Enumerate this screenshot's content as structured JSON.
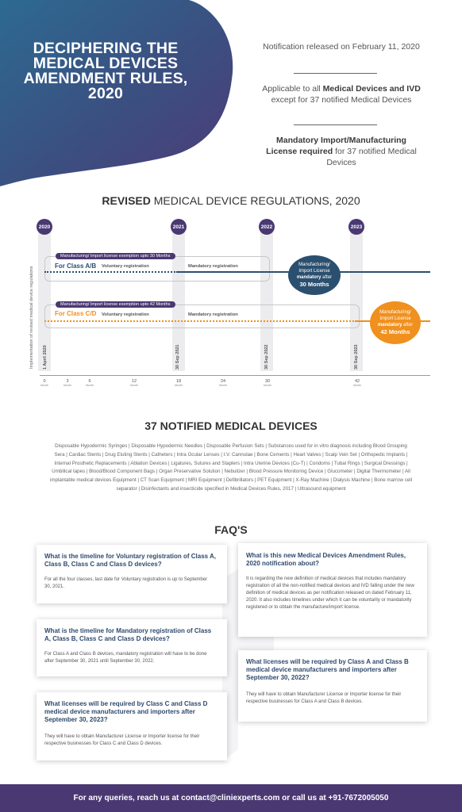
{
  "header": {
    "title": "DECIPHERING THE MEDICAL DEVICES AMENDMENT RULES, 2020",
    "info1": "Notification released on February 11, 2020",
    "info2_pre": "Applicable to all ",
    "info2_bold": "Medical Devices and IVD",
    "info2_post": " except for 37 notified Medical Devices",
    "info3_bold": "Mandatory Import/Manufacturing License required",
    "info3_post": " for 37 notified Medical Devices"
  },
  "regulations": {
    "title_bold": "REVISED",
    "title_rest": " MEDICAL DEVICE REGULATIONS, 2020",
    "years": [
      "2020",
      "2021",
      "2022",
      "2023"
    ],
    "y_axis_label": "Implementation of revised medical device regulations",
    "class_ab": {
      "pill": "Manufacturing/ Import license exemption upto 30 Months",
      "label": "For Class A/B",
      "voluntary": "Voluntary registration",
      "mandatory": "Mandatory registration",
      "circle_line1": "Manufacturing/",
      "circle_line2": "Import License",
      "circle_bold": "mandatory",
      "circle_after": " after",
      "circle_months": "30 Months",
      "color": "#2b4f6e"
    },
    "class_cd": {
      "pill": "Manufacturing/ Import license exemption upto 42 Months",
      "label": "For Class C/D",
      "voluntary": "Voluntary registration",
      "mandatory": "Mandatory registration",
      "circle_line1": "Manufacturing/",
      "circle_line2": "Import License",
      "circle_bold": "mandatory",
      "circle_after": " after",
      "circle_months": "42 Months",
      "color": "#f0901e"
    },
    "dates": [
      "1 April 2020",
      "30 Sep 2021",
      "30 Sep 2022",
      "30 Sep 2023"
    ],
    "ticks": [
      {
        "value": "0",
        "unit": "Month"
      },
      {
        "value": "3",
        "unit": "Month"
      },
      {
        "value": "6",
        "unit": "Month"
      },
      {
        "value": "12",
        "unit": "Month"
      },
      {
        "value": "18",
        "unit": "Month"
      },
      {
        "value": "24",
        "unit": "Month"
      },
      {
        "value": "30",
        "unit": "Month"
      },
      {
        "value": "42",
        "unit": "Month"
      }
    ]
  },
  "devices": {
    "title": "37 NOTIFIED MEDICAL DEVICES",
    "list": "Disposable Hypodermic Syringes  |  Disposable Hypodermic Needles  |  Disposable Perfusion Sets  |  Substances used for in vitro diagnosis including Blood Grouping Sera  |  Cardiac Stents  |  Drug Eluting Stents  |  Catheters  |  Intra Ocular Lenses  |  I.V. Cannulae  |  Bone Cements  |  Heart Valves  |  Scalp Vein Set  |  Orthopedic Implants  |  Internal Prosthetic Replacements  |  Ablation Devices  |  Ligatures, Sutures and Staplers  |  Intra Uterine Devices (Cu-T)  |  Condoms  |  Tubal Rings  |  Surgical Dressings  |  Umbilical tapes  |  Blood/Blood Component Bags  |  Organ Preservative Solution  |  Nebulizer  |  Blood Pressure Monitoring Device  |  Glucometer  |  Digital Thermometer  |  All implantable medical devices Equipment  |  CT Scan Equipment  |  MRI Equipment  |  Defibrillators  |  PET Equipment  |  X-Ray Machine  |  Dialysis Machine  |  Bone marrow cell separator  |  Disinfectants and insecticide specified in Medical Devices Rules, 2017  |  Ultrasound equipment"
  },
  "faq": {
    "title": "FAQ'S",
    "items": [
      {
        "q": "What is the timeline for Voluntary registration of Class A, Class B, Class C and Class D devices?",
        "a": "For all the four classes, last date for Voluntary registration is up to September 30, 2021."
      },
      {
        "q": "What is this new Medical Devices Amendment Rules, 2020 notification about?",
        "a": "It is regarding the new definition of medical devices that includes mandatory registration of all the non-notified medical devices and IVD falling under the new definition of medical devices as per notification released on dated February 11, 2020. It also includes timelines under which it can be voluntarily or mandatorily registered or to obtain the manufacture/import license."
      },
      {
        "q": "What is the timeline for Mandatory registration of Class A, Class B, Class C and Class D devices?",
        "a": "For Class A and Class B devices, mandatory registration will have to be done after September 30, 2021 until September 30, 2022."
      },
      {
        "q": "What licenses will be required by Class A and Class B medical device manufacturers and importers after September 30, 2022?",
        "a": "They will have to obtain Manufacturer License or Importer license for their respective businesses for Class A and Class B devices."
      },
      {
        "q": "What licenses will be required by Class C and Class D medical device manufacturers and importers after September 30, 2023?",
        "a": "They will have to obtain Manufacturer License or Importer license for their respective businesses for Class C and Class D devices."
      }
    ]
  },
  "footer": {
    "text": "For any queries, reach us at contact@cliniexperts.com or call us at +91-7672005050"
  }
}
